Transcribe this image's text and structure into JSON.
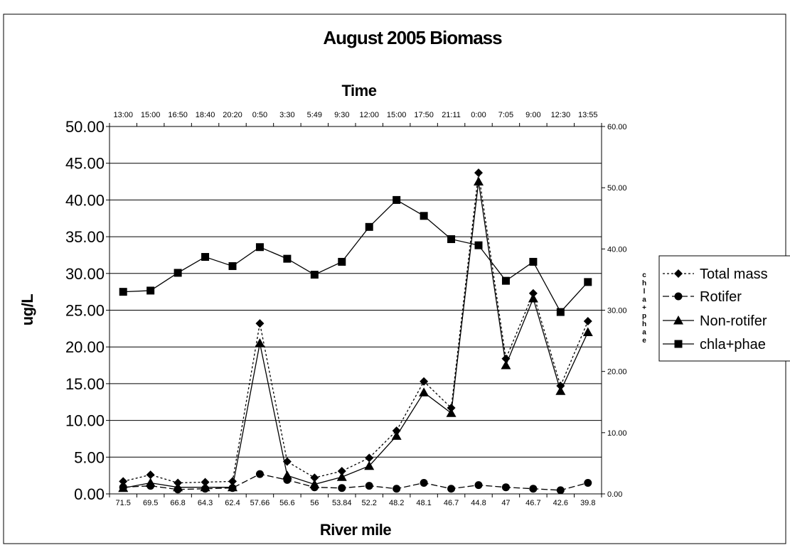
{
  "chart_data": {
    "type": "line",
    "title": "August 2005 Biomass",
    "xlabel": "River mile",
    "x2label": "Time",
    "ylabel": "ug/L",
    "y2label": "chla+phae",
    "categories": [
      "71.5",
      "69.5",
      "66.8",
      "64.3",
      "62.4",
      "57.66",
      "56.6",
      "56",
      "53.84",
      "52.2",
      "48.2",
      "48.1",
      "46.7",
      "44.8",
      "47",
      "46.7",
      "42.6",
      "39.8"
    ],
    "top_categories": [
      "13:00",
      "15:00",
      "16:50",
      "18:40",
      "20:20",
      "0:50",
      "3:30",
      "5:49",
      "9:30",
      "12:00",
      "15:00",
      "17:50",
      "21:11",
      "0:00",
      "7:05",
      "9:00",
      "12:30",
      "13:55"
    ],
    "ylim": [
      0,
      50
    ],
    "yticks": [
      "0.00",
      "5.00",
      "10.00",
      "15.00",
      "20.00",
      "25.00",
      "30.00",
      "35.00",
      "40.00",
      "45.00",
      "50.00"
    ],
    "y2lim": [
      0,
      60
    ],
    "y2ticks": [
      "0.00",
      "10.00",
      "20.00",
      "30.00",
      "40.00",
      "50.00",
      "60.00"
    ],
    "grid": true,
    "legend_position": "right",
    "series": [
      {
        "name": "Total mass",
        "axis": "left",
        "marker": "diamond",
        "line": "dotted",
        "values": [
          1.7,
          2.6,
          1.5,
          1.6,
          1.7,
          23.2,
          4.4,
          2.2,
          3.1,
          4.9,
          8.6,
          15.3,
          11.7,
          43.7,
          18.4,
          27.3,
          14.7,
          23.5
        ]
      },
      {
        "name": "Rotifer",
        "axis": "left",
        "marker": "circle",
        "line": "dashed",
        "values": [
          0.9,
          1.1,
          0.6,
          0.7,
          0.8,
          2.7,
          1.9,
          0.9,
          0.8,
          1.1,
          0.7,
          1.5,
          0.7,
          1.2,
          0.9,
          0.7,
          0.5,
          1.5
        ]
      },
      {
        "name": "Non-rotifer",
        "axis": "left",
        "marker": "triangle",
        "line": "solid",
        "values": [
          0.8,
          1.5,
          0.9,
          0.9,
          0.9,
          20.5,
          2.5,
          1.3,
          2.3,
          3.8,
          7.9,
          13.8,
          11.0,
          42.5,
          17.5,
          26.6,
          14.0,
          22.0
        ]
      },
      {
        "name": "chla+phae",
        "axis": "right",
        "marker": "square",
        "line": "solid",
        "values": [
          33.0,
          33.2,
          36.1,
          38.7,
          37.2,
          40.3,
          38.4,
          35.8,
          37.9,
          43.6,
          48.0,
          45.4,
          41.6,
          40.6,
          34.8,
          37.9,
          29.7,
          34.6
        ]
      }
    ]
  }
}
